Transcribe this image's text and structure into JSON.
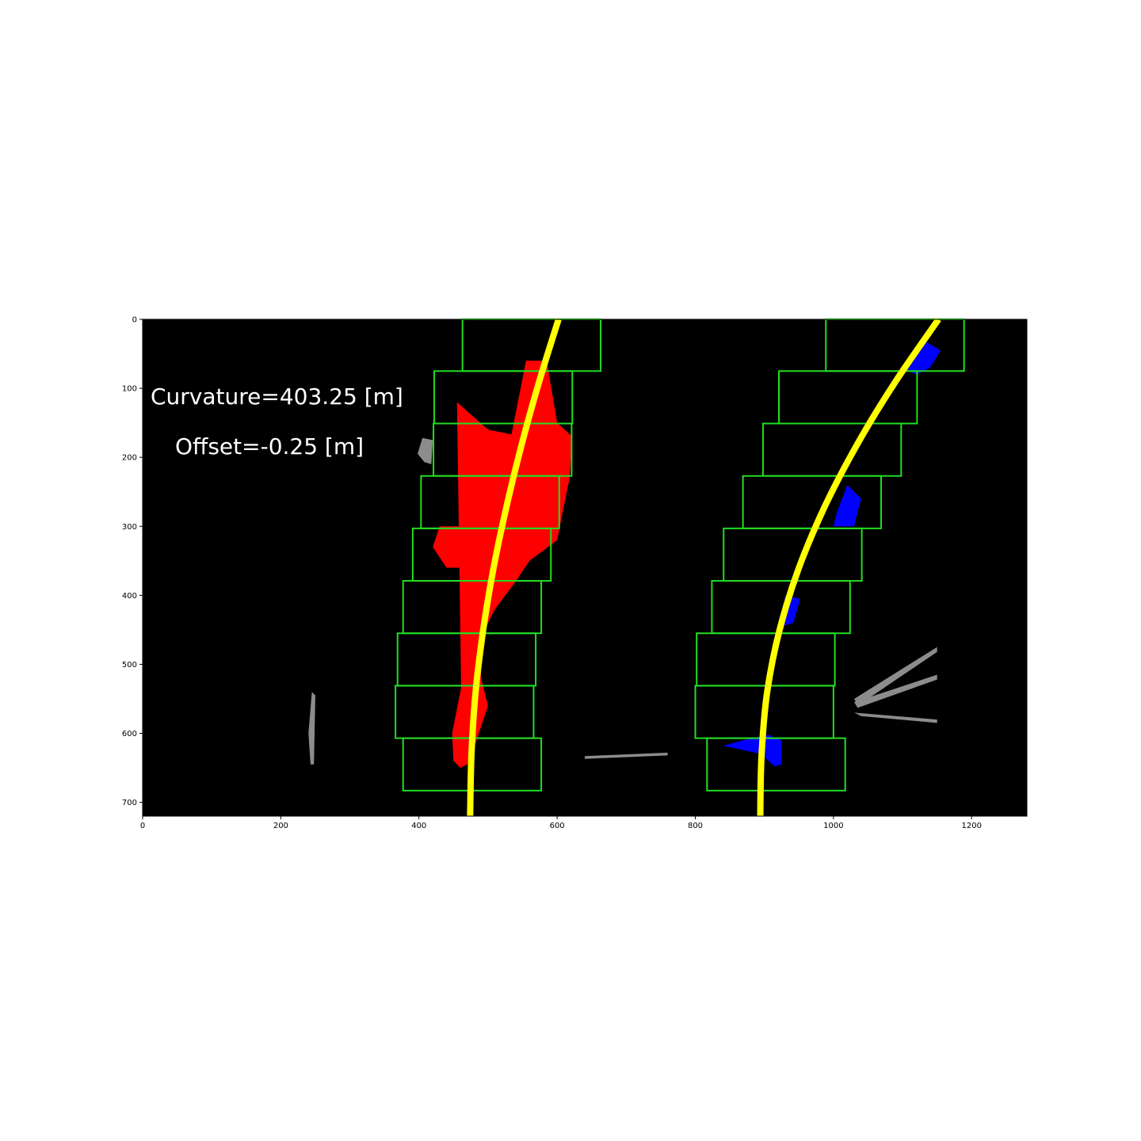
{
  "chart_data": {
    "type": "image",
    "xlim": [
      0,
      1280
    ],
    "ylim": [
      720,
      0
    ],
    "x_ticks": [
      0,
      200,
      400,
      600,
      800,
      1000,
      1200
    ],
    "y_ticks": [
      0,
      100,
      200,
      300,
      400,
      500,
      600,
      700
    ],
    "background_color": "#000000",
    "window_color": "#22dd22",
    "fit_color": "#ffff00",
    "left_pixels_color": "#ff0000",
    "right_pixels_color": "#0000ff",
    "other_pixels_color": "#8c8c8c",
    "annotations": [
      {
        "text": "Curvature=403.25 [m]",
        "x": 12,
        "y": 112
      },
      {
        "text": "Offset=-0.25 [m]",
        "x": 47,
        "y": 185
      }
    ],
    "left_windows": [
      {
        "x0": 463,
        "x1": 663,
        "y0": 0,
        "y1": 75
      },
      {
        "x0": 422,
        "x1": 622,
        "y0": 75,
        "y1": 151
      },
      {
        "x0": 421,
        "x1": 621,
        "y0": 151,
        "y1": 227
      },
      {
        "x0": 403,
        "x1": 603,
        "y0": 227,
        "y1": 303
      },
      {
        "x0": 391,
        "x1": 591,
        "y0": 303,
        "y1": 379
      },
      {
        "x0": 377,
        "x1": 577,
        "y0": 379,
        "y1": 455
      },
      {
        "x0": 369,
        "x1": 569,
        "y0": 455,
        "y1": 531
      },
      {
        "x0": 366,
        "x1": 566,
        "y0": 531,
        "y1": 607
      },
      {
        "x0": 377,
        "x1": 577,
        "y0": 607,
        "y1": 683
      }
    ],
    "right_windows": [
      {
        "x0": 989,
        "x1": 1189,
        "y0": 0,
        "y1": 75
      },
      {
        "x0": 921,
        "x1": 1121,
        "y0": 75,
        "y1": 151
      },
      {
        "x0": 898,
        "x1": 1098,
        "y0": 151,
        "y1": 227
      },
      {
        "x0": 869,
        "x1": 1069,
        "y0": 227,
        "y1": 303
      },
      {
        "x0": 841,
        "x1": 1041,
        "y0": 303,
        "y1": 379
      },
      {
        "x0": 824,
        "x1": 1024,
        "y0": 379,
        "y1": 455
      },
      {
        "x0": 802,
        "x1": 1002,
        "y0": 455,
        "y1": 531
      },
      {
        "x0": 800,
        "x1": 1000,
        "y0": 531,
        "y1": 607
      },
      {
        "x0": 817,
        "x1": 1017,
        "y0": 607,
        "y1": 683
      }
    ],
    "left_fit": {
      "x": [
        602,
        574,
        549,
        527,
        508,
        493,
        482,
        476,
        474
      ],
      "y": [
        0,
        90,
        180,
        270,
        360,
        450,
        540,
        630,
        720
      ]
    },
    "right_fit": {
      "x": [
        1152,
        1090,
        1035,
        988,
        950,
        922,
        904,
        896,
        894
      ],
      "y": [
        0,
        90,
        180,
        270,
        360,
        450,
        540,
        630,
        720
      ]
    },
    "left_lane_pixels": [
      {
        "x": [
          555,
          585,
          600,
          622,
          618,
          600,
          560,
          540,
          510,
          490,
          490,
          500,
          480,
          470,
          460,
          450,
          448
        ],
        "y": [
          60,
          60,
          150,
          170,
          230,
          320,
          350,
          380,
          420,
          460,
          520,
          560,
          620,
          645,
          650,
          640,
          600
        ]
      },
      {
        "x": [
          455,
          500,
          550,
          570,
          550,
          520,
          500,
          480,
          465,
          470,
          470,
          462
        ],
        "y": [
          120,
          160,
          170,
          230,
          290,
          330,
          400,
          460,
          560,
          600,
          640,
          600
        ]
      },
      {
        "x": [
          430,
          470,
          480,
          440,
          420
        ],
        "y": [
          300,
          300,
          360,
          360,
          330
        ]
      }
    ],
    "right_lane_pixels": [
      {
        "x": [
          1130,
          1155,
          1140,
          1120,
          1100
        ],
        "y": [
          30,
          45,
          70,
          80,
          70
        ]
      },
      {
        "x": [
          1020,
          1040,
          1030,
          1010,
          1000,
          1005
        ],
        "y": [
          240,
          260,
          300,
          300,
          300,
          280
        ]
      },
      {
        "x": [
          930,
          952,
          942,
          925
        ],
        "y": [
          400,
          405,
          440,
          445
        ]
      },
      {
        "x": [
          840,
          870,
          905,
          925,
          925,
          915,
          895,
          860
        ],
        "y": [
          618,
          610,
          602,
          610,
          645,
          648,
          630,
          622
        ]
      }
    ],
    "other_pixels": [
      {
        "x": [
          245,
          250,
          248,
          243,
          240
        ],
        "y": [
          540,
          545,
          645,
          645,
          600
        ]
      },
      {
        "x": [
          405,
          420,
          418,
          408,
          398
        ],
        "y": [
          172,
          175,
          210,
          207,
          195
        ]
      },
      {
        "x": [
          1030,
          1150,
          1150,
          1040
        ],
        "y": [
          570,
          580,
          585,
          575
        ]
      },
      {
        "x": [
          1030,
          1150,
          1150,
          1035
        ],
        "y": [
          550,
          475,
          482,
          560
        ]
      },
      {
        "x": [
          1030,
          1150,
          1150,
          1035
        ],
        "y": [
          555,
          515,
          522,
          563
        ]
      },
      {
        "x": [
          640,
          760,
          760,
          640
        ],
        "y": [
          633,
          628,
          632,
          637
        ]
      }
    ]
  }
}
